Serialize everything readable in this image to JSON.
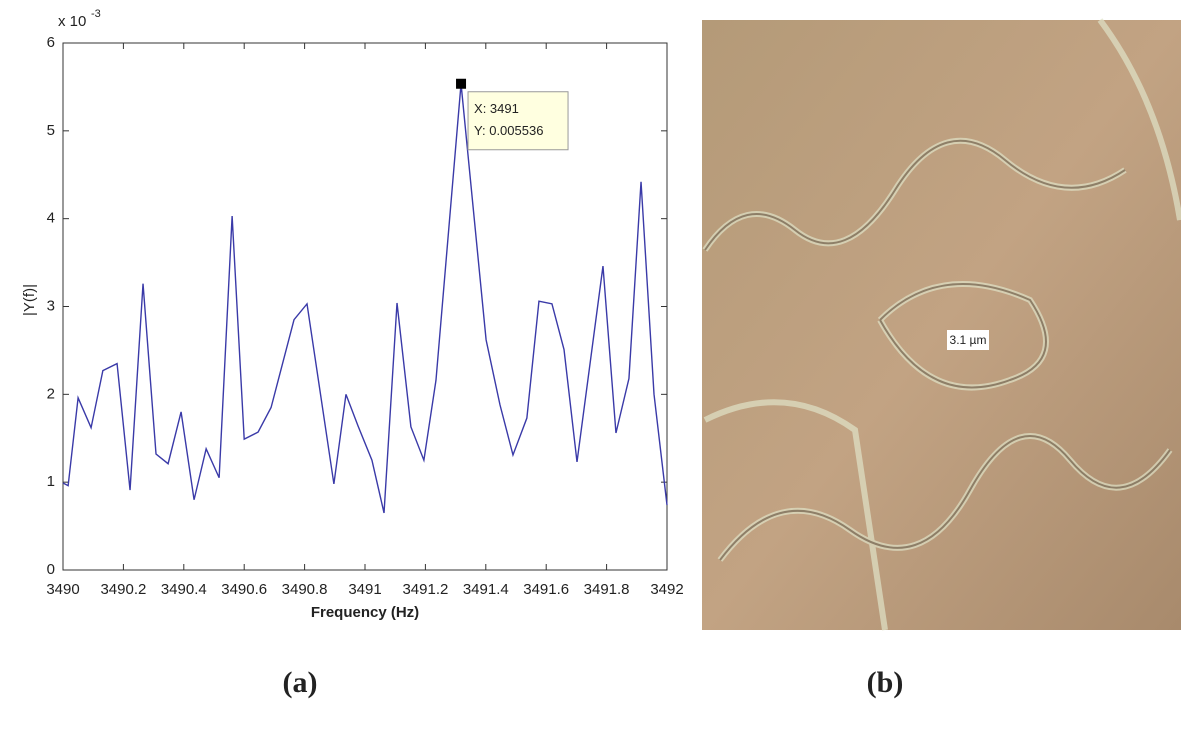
{
  "chart_data": {
    "type": "line",
    "y_multiplier": {
      "base": "x 10",
      "exponent": "-3"
    },
    "ylabel": "|Y(f)|",
    "xlabel": "Frequency (Hz)",
    "x": [
      3490,
      3490.017,
      3490.05,
      3490.093,
      3490.132,
      3490.179,
      3490.222,
      3490.265,
      3490.308,
      3490.348,
      3490.391,
      3490.434,
      3490.474,
      3490.517,
      3490.56,
      3490.6,
      3490.646,
      3490.689,
      3490.765,
      3490.808,
      3490.897,
      3490.937,
      3490.977,
      3491.023,
      3491.063,
      3491.106,
      3491.152,
      3491.195,
      3491.235,
      3491.318,
      3491.401,
      3491.447,
      3491.49,
      3491.536,
      3491.576,
      3491.619,
      3491.659,
      3491.702,
      3491.788,
      3491.831,
      3491.874,
      3491.914,
      3491.957,
      3492
    ],
    "values": [
      0.99,
      0.96,
      1.96,
      1.62,
      2.27,
      2.35,
      0.91,
      3.26,
      1.32,
      1.21,
      1.8,
      0.8,
      1.38,
      1.05,
      4.03,
      1.49,
      1.57,
      1.85,
      2.85,
      3.03,
      0.98,
      2.0,
      1.64,
      1.25,
      0.65,
      3.04,
      1.63,
      1.25,
      2.16,
      5.536,
      2.62,
      1.88,
      1.31,
      1.73,
      3.06,
      3.03,
      2.51,
      1.23,
      3.46,
      1.56,
      2.18,
      4.42,
      2.0,
      0.74
    ],
    "color": "#3a3aa8",
    "xlim": [
      3490,
      3492
    ],
    "xticks": [
      3490,
      3490.2,
      3490.4,
      3490.6,
      3490.8,
      3491,
      3491.2,
      3491.4,
      3491.6,
      3491.8,
      3492
    ],
    "ylim": [
      0,
      6
    ],
    "yticks": [
      0,
      1,
      2,
      3,
      4,
      5,
      6
    ],
    "grid": false,
    "datatip": {
      "point": 29,
      "lines": [
        "X: 3491",
        "Y: 0.005536"
      ]
    }
  },
  "micrograph": {
    "scale_label": "3.1 µm"
  },
  "captions": [
    "(a)",
    "(b)"
  ]
}
